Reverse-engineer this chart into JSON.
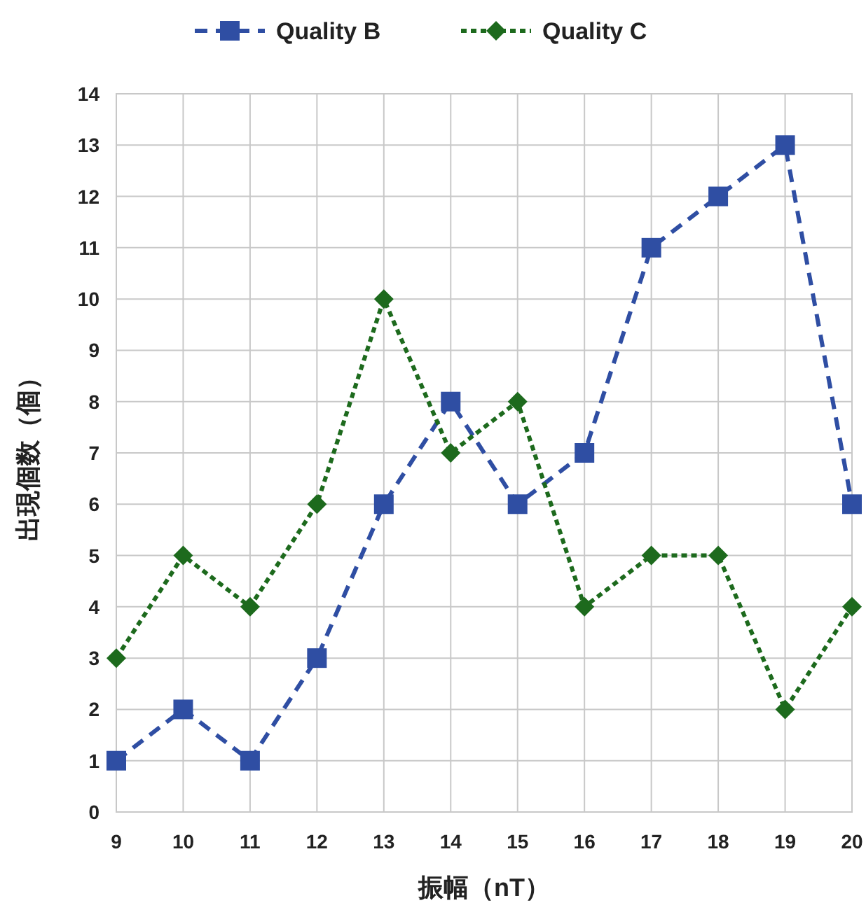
{
  "chart_data": {
    "type": "line",
    "xlabel": "振幅（nT）",
    "ylabel": "出現個数（個）",
    "x": [
      9,
      10,
      11,
      12,
      13,
      14,
      15,
      16,
      17,
      18,
      19,
      20
    ],
    "xlim": [
      9,
      20
    ],
    "xticks": [
      9,
      10,
      11,
      12,
      13,
      14,
      15,
      16,
      17,
      18,
      19,
      20
    ],
    "ylim": [
      0,
      14
    ],
    "yticks": [
      0,
      1,
      2,
      3,
      4,
      5,
      6,
      7,
      8,
      9,
      10,
      11,
      12,
      13,
      14
    ],
    "grid": true,
    "legend": "top",
    "series": [
      {
        "name": "Quality B",
        "color": "#2f4ea3",
        "marker": "square",
        "line_style": "dashed",
        "values": [
          1,
          2,
          1,
          3,
          6,
          8,
          6,
          7,
          11,
          12,
          13,
          6
        ]
      },
      {
        "name": "Quality C",
        "color": "#1d6a1d",
        "marker": "diamond",
        "line_style": "dotted",
        "values": [
          3,
          5,
          4,
          6,
          10,
          7,
          8,
          4,
          5,
          5,
          2,
          4
        ]
      }
    ]
  }
}
